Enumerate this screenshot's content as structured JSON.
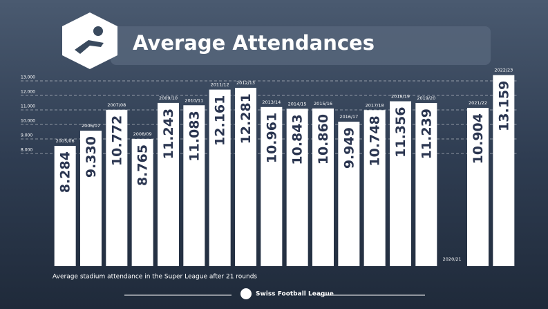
{
  "chart_data": {
    "type": "bar",
    "title": "Average Attendances",
    "subtitle": "Average stadium attendance in the Super League after 21 rounds",
    "brand": "Swiss Football League",
    "categories": [
      "2005/06",
      "2006/07",
      "2007/08",
      "2008/09",
      "2009/10",
      "2010/11",
      "2011/12",
      "2012/13",
      "2013/14",
      "2014/15",
      "2015/16",
      "2016/17",
      "2017/18",
      "2018/19",
      "2019/20",
      "2020/21",
      "2021/22",
      "2022/23"
    ],
    "values": [
      8284,
      9330,
      10772,
      8765,
      11243,
      11083,
      12161,
      12281,
      10961,
      10843,
      10860,
      9949,
      10748,
      11356,
      11239,
      null,
      10904,
      13159
    ],
    "value_labels": [
      "8.284",
      "9.330",
      "10.772",
      "8.765",
      "11.243",
      "11.083",
      "12.161",
      "12.281",
      "10.961",
      "10.843",
      "10.860",
      "9.949",
      "10.748",
      "11.356",
      "11.239",
      null,
      "10.904",
      "13.159"
    ],
    "color": "#ffffff",
    "ylim": [
      0,
      13500
    ],
    "yticks": [
      {
        "value": 8000,
        "label": "8.000"
      },
      {
        "value": 9000,
        "label": "9.000"
      },
      {
        "value": 10000,
        "label": "10.000"
      },
      {
        "value": 11000,
        "label": "11.000"
      },
      {
        "value": 12000,
        "label": "12.000"
      },
      {
        "value": 13000,
        "label": "13.000"
      }
    ],
    "grid": true
  }
}
